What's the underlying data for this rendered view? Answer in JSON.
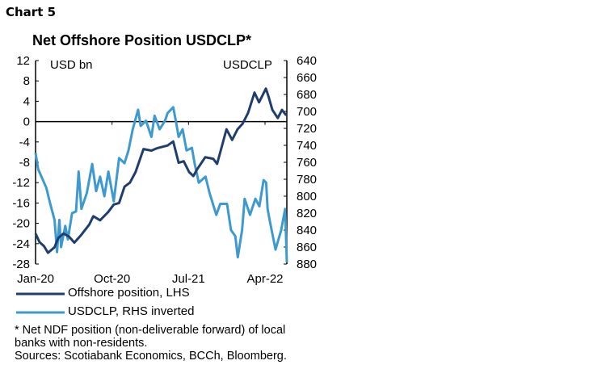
{
  "chart_label": "Chart 5",
  "chart_data": {
    "type": "line",
    "title": "Net Offshore Position USDCLP*",
    "left_axis": {
      "unit_label": "USD bn",
      "ylim": [
        -28,
        12
      ],
      "ticks": [
        12,
        8,
        4,
        0,
        -4,
        -8,
        -12,
        -16,
        -20,
        -24,
        -28
      ]
    },
    "right_axis": {
      "unit_label": "USDCLP",
      "ylim": [
        640,
        880
      ],
      "inverted": true,
      "ticks": [
        640,
        660,
        680,
        700,
        720,
        740,
        760,
        780,
        800,
        820,
        840,
        860,
        880
      ]
    },
    "x_ticks": [
      "Jan-20",
      "Oct-20",
      "Jul-21",
      "Apr-22"
    ],
    "x_tick_dates": [
      "2020-01-01",
      "2020-10-01",
      "2021-07-01",
      "2022-04-01"
    ],
    "xlim": [
      "2020-01-01",
      "2022-06-18"
    ],
    "zero_line": true,
    "grid": false,
    "series": [
      {
        "name": "Offshore position, LHS",
        "axis": "left",
        "color": "#1f3e6e",
        "points": [
          [
            "2020-01-01",
            -22
          ],
          [
            "2020-01-15",
            -23.7
          ],
          [
            "2020-02-01",
            -24.5
          ],
          [
            "2020-02-15",
            -25.8
          ],
          [
            "2020-03-08",
            -24.7
          ],
          [
            "2020-03-21",
            -22.9
          ],
          [
            "2020-04-10",
            -22
          ],
          [
            "2020-04-29",
            -22.6
          ],
          [
            "2020-05-18",
            -23.8
          ],
          [
            "2020-06-12",
            -22.3
          ],
          [
            "2020-07-11",
            -20.2
          ],
          [
            "2020-07-25",
            -18.6
          ],
          [
            "2020-08-19",
            -19.4
          ],
          [
            "2020-09-17",
            -17.8
          ],
          [
            "2020-10-07",
            -16.3
          ],
          [
            "2020-10-26",
            -16
          ],
          [
            "2020-11-15",
            -12.8
          ],
          [
            "2020-12-04",
            -12
          ],
          [
            "2020-12-24",
            -9.9
          ],
          [
            "2021-01-12",
            -7
          ],
          [
            "2021-01-22",
            -5.4
          ],
          [
            "2021-02-20",
            -5.7
          ],
          [
            "2021-03-11",
            -5.2
          ],
          [
            "2021-04-17",
            -4.7
          ],
          [
            "2021-05-07",
            -3.9
          ],
          [
            "2021-05-26",
            -8.1
          ],
          [
            "2021-06-14",
            -7.8
          ],
          [
            "2021-07-03",
            -9.9
          ],
          [
            "2021-07-18",
            -10.7
          ],
          [
            "2021-08-01",
            -9.4
          ],
          [
            "2021-08-30",
            -7
          ],
          [
            "2021-09-28",
            -7.3
          ],
          [
            "2021-10-12",
            -8.3
          ],
          [
            "2021-10-27",
            -5.2
          ],
          [
            "2021-11-15",
            -1.5
          ],
          [
            "2021-12-05",
            -3.6
          ],
          [
            "2021-12-24",
            -1.5
          ],
          [
            "2022-01-12",
            -0.4
          ],
          [
            "2022-01-31",
            1.7
          ],
          [
            "2022-02-24",
            5.7
          ],
          [
            "2022-03-10",
            3.8
          ],
          [
            "2022-04-04",
            6.5
          ],
          [
            "2022-04-13",
            5
          ],
          [
            "2022-04-27",
            2.3
          ],
          [
            "2022-05-16",
            0.7
          ],
          [
            "2022-05-31",
            2.3
          ],
          [
            "2022-06-16",
            1.2
          ]
        ]
      },
      {
        "name": "USDCLP, RHS inverted",
        "axis": "right",
        "color": "#3d9ad1",
        "points": [
          [
            "2020-01-01",
            749
          ],
          [
            "2020-01-10",
            768
          ],
          [
            "2020-02-09",
            790
          ],
          [
            "2020-02-23",
            809
          ],
          [
            "2020-03-08",
            828
          ],
          [
            "2020-03-17",
            866
          ],
          [
            "2020-03-25",
            828
          ],
          [
            "2020-04-01",
            860
          ],
          [
            "2020-04-16",
            835
          ],
          [
            "2020-04-25",
            851
          ],
          [
            "2020-05-10",
            820
          ],
          [
            "2020-05-24",
            818
          ],
          [
            "2020-06-03",
            771
          ],
          [
            "2020-06-13",
            815
          ],
          [
            "2020-07-02",
            796
          ],
          [
            "2020-07-21",
            762
          ],
          [
            "2020-08-05",
            794
          ],
          [
            "2020-08-19",
            777
          ],
          [
            "2020-09-04",
            800
          ],
          [
            "2020-09-18",
            771
          ],
          [
            "2020-10-07",
            806
          ],
          [
            "2020-10-26",
            755
          ],
          [
            "2020-11-15",
            761
          ],
          [
            "2020-11-29",
            746
          ],
          [
            "2020-12-14",
            721
          ],
          [
            "2021-01-03",
            698
          ],
          [
            "2021-01-12",
            717
          ],
          [
            "2021-02-01",
            711
          ],
          [
            "2021-02-20",
            730
          ],
          [
            "2021-03-01",
            705
          ],
          [
            "2021-03-19",
            721
          ],
          [
            "2021-04-08",
            711
          ],
          [
            "2021-04-17",
            702
          ],
          [
            "2021-05-07",
            695
          ],
          [
            "2021-05-16",
            711
          ],
          [
            "2021-05-26",
            730
          ],
          [
            "2021-06-10",
            721
          ],
          [
            "2021-06-24",
            746
          ],
          [
            "2021-07-13",
            743
          ],
          [
            "2021-07-23",
            762
          ],
          [
            "2021-08-07",
            784
          ],
          [
            "2021-09-01",
            777
          ],
          [
            "2021-09-15",
            796
          ],
          [
            "2021-10-09",
            822
          ],
          [
            "2021-10-23",
            809
          ],
          [
            "2021-11-17",
            809
          ],
          [
            "2021-12-01",
            840
          ],
          [
            "2021-12-16",
            847
          ],
          [
            "2021-12-25",
            872
          ],
          [
            "2022-01-10",
            840
          ],
          [
            "2022-01-19",
            803
          ],
          [
            "2022-02-08",
            822
          ],
          [
            "2022-02-27",
            803
          ],
          [
            "2022-03-11",
            812
          ],
          [
            "2022-03-26",
            781
          ],
          [
            "2022-04-05",
            784
          ],
          [
            "2022-04-10",
            815
          ],
          [
            "2022-04-19",
            831
          ],
          [
            "2022-05-08",
            863
          ],
          [
            "2022-05-28",
            840
          ],
          [
            "2022-06-12",
            815
          ],
          [
            "2022-06-18",
            878
          ]
        ]
      }
    ],
    "legend_position": "bottom"
  },
  "footnote": "* Net NDF position (non-deliverable forward) of local banks with non-residents.",
  "sources": "Sources: Scotiabank Economics, BCCh, Bloomberg."
}
